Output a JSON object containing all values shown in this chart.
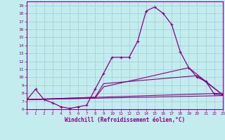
{
  "xlabel": "Windchill (Refroidissement éolien,°C)",
  "xlim": [
    0,
    23
  ],
  "ylim": [
    6,
    19.5
  ],
  "yticks": [
    6,
    7,
    8,
    9,
    10,
    11,
    12,
    13,
    14,
    15,
    16,
    17,
    18,
    19
  ],
  "xticks": [
    0,
    1,
    2,
    3,
    4,
    5,
    6,
    7,
    8,
    9,
    10,
    11,
    12,
    13,
    14,
    15,
    16,
    17,
    18,
    19,
    20,
    21,
    22,
    23
  ],
  "bg_color": "#c2ecee",
  "grid_color": "#9dcdd4",
  "line_color": "#880088",
  "main_curve": {
    "x": [
      0,
      1,
      2,
      3,
      4,
      5,
      6,
      7,
      8,
      9,
      10,
      11,
      12,
      13,
      14,
      15,
      16,
      17,
      18,
      19,
      20,
      21,
      22,
      23
    ],
    "y": [
      7.2,
      8.5,
      7.2,
      6.8,
      6.3,
      6.1,
      6.3,
      6.5,
      8.5,
      10.5,
      12.5,
      12.5,
      12.5,
      14.5,
      18.3,
      18.8,
      18.0,
      16.6,
      13.2,
      11.2,
      10.0,
      9.5,
      7.9,
      7.8
    ]
  },
  "straight_lines": [
    {
      "x": [
        0,
        23
      ],
      "y": [
        7.2,
        8.0
      ]
    },
    {
      "x": [
        0,
        23
      ],
      "y": [
        7.2,
        7.7
      ]
    },
    {
      "x": [
        0,
        8,
        9,
        20,
        23
      ],
      "y": [
        7.2,
        7.5,
        9.2,
        10.2,
        7.8
      ]
    },
    {
      "x": [
        0,
        8,
        9,
        19,
        23
      ],
      "y": [
        7.2,
        7.4,
        8.8,
        11.2,
        7.8
      ]
    }
  ]
}
